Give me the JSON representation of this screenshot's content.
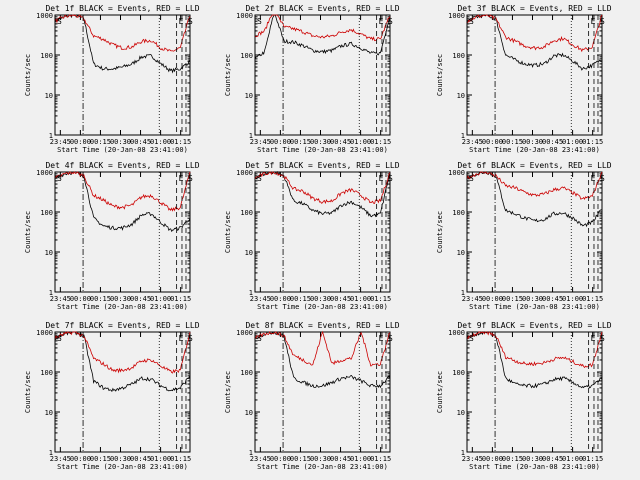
{
  "chart_data": {
    "type": "line",
    "yscale": "log",
    "ylim": [
      1,
      1000
    ],
    "ylabel": "Counts/sec",
    "xlabel": "Start Time (20-Jan-08 23:41:00)",
    "xlim_minutes": [
      "23:41",
      "01:22"
    ],
    "x_ticks": [
      "23:45",
      "00:00",
      "00:15",
      "00:30",
      "00:45",
      "01:00",
      "01:15"
    ],
    "y_ticks": [
      "1",
      "10",
      "100",
      "1000"
    ],
    "markers": [
      {
        "label": "S",
        "time": "23:41",
        "style": "solid"
      },
      {
        "label": "",
        "time": "00:02",
        "style": "dash-dot"
      },
      {
        "label": "",
        "time": "00:59",
        "style": "dotted"
      },
      {
        "label": "E",
        "time": "01:12",
        "style": "dashed"
      },
      {
        "label": "",
        "time": "01:16",
        "style": "dashed"
      },
      {
        "label": "S",
        "time": "01:19",
        "style": "dashed"
      }
    ],
    "panels": [
      {
        "title": "Det 1f BLACK = Events, RED = LLD",
        "series": [
          {
            "color": "#000000",
            "values": [
              700,
              900,
              1000,
              800,
              60,
              45,
              45,
              50,
              60,
              90,
              95,
              60,
              40,
              45,
              70
            ]
          },
          {
            "color": "#cc0000",
            "values": [
              700,
              900,
              1000,
              800,
              300,
              250,
              180,
              150,
              160,
              220,
              230,
              150,
              120,
              150,
              1000
            ]
          }
        ]
      },
      {
        "title": "Det 2f BLACK = Events, RED = LLD",
        "series": [
          {
            "color": "#000000",
            "values": [
              80,
              120,
              1200,
              220,
              210,
              170,
              130,
              120,
              130,
              170,
              190,
              150,
              110,
              110,
              1000
            ]
          },
          {
            "color": "#cc0000",
            "values": [
              300,
              400,
              1500,
              500,
              450,
              380,
              300,
              280,
              300,
              380,
              430,
              330,
              250,
              250,
              1000
            ]
          }
        ]
      },
      {
        "title": "Det 3f BLACK = Events, RED = LLD",
        "series": [
          {
            "color": "#000000",
            "values": [
              700,
              900,
              1000,
              800,
              100,
              75,
              60,
              55,
              60,
              95,
              100,
              70,
              45,
              55,
              80
            ]
          },
          {
            "color": "#cc0000",
            "values": [
              700,
              900,
              1000,
              800,
              280,
              220,
              170,
              150,
              160,
              230,
              260,
              180,
              130,
              160,
              1000
            ]
          }
        ]
      },
      {
        "title": "Det 4f BLACK = Events, RED = LLD",
        "series": [
          {
            "color": "#000000",
            "values": [
              700,
              900,
              1000,
              800,
              70,
              45,
              40,
              40,
              50,
              85,
              90,
              55,
              35,
              40,
              70
            ]
          },
          {
            "color": "#cc0000",
            "values": [
              700,
              900,
              1000,
              800,
              260,
              200,
              140,
              130,
              150,
              240,
              260,
              170,
              110,
              130,
              1000
            ]
          }
        ]
      },
      {
        "title": "Det 5f BLACK = Events, RED = LLD",
        "series": [
          {
            "color": "#000000",
            "values": [
              700,
              900,
              1000,
              800,
              190,
              160,
              110,
              90,
              95,
              150,
              180,
              130,
              80,
              90,
              1000
            ]
          },
          {
            "color": "#cc0000",
            "values": [
              700,
              900,
              1000,
              800,
              380,
              330,
              220,
              180,
              190,
              300,
              360,
              260,
              170,
              190,
              1000
            ]
          }
        ]
      },
      {
        "title": "Det 6f BLACK = Events, RED = LLD",
        "series": [
          {
            "color": "#000000",
            "values": [
              700,
              900,
              1000,
              800,
              110,
              90,
              70,
              60,
              65,
              90,
              95,
              70,
              45,
              55,
              120
            ]
          },
          {
            "color": "#cc0000",
            "values": [
              700,
              900,
              1000,
              800,
              450,
              400,
              310,
              260,
              280,
              360,
              400,
              300,
              210,
              250,
              1000
            ]
          }
        ]
      },
      {
        "title": "Det 7f BLACK = Events, RED = LLD",
        "series": [
          {
            "color": "#000000",
            "values": [
              700,
              900,
              1000,
              800,
              60,
              40,
              35,
              40,
              50,
              70,
              65,
              45,
              35,
              40,
              80
            ]
          },
          {
            "color": "#cc0000",
            "values": [
              700,
              900,
              1000,
              800,
              220,
              160,
              110,
              110,
              130,
              190,
              200,
              140,
              100,
              110,
              1000
            ]
          }
        ]
      },
      {
        "title": "Det 8f BLACK = Events, RED = LLD",
        "series": [
          {
            "color": "#000000",
            "values": [
              700,
              900,
              1000,
              800,
              70,
              55,
              45,
              45,
              55,
              70,
              75,
              60,
              45,
              45,
              80
            ]
          },
          {
            "color": "#cc0000",
            "values": [
              700,
              900,
              1000,
              800,
              260,
              200,
              150,
              1000,
              160,
              200,
              220,
              1000,
              150,
              160,
              1000
            ]
          }
        ]
      },
      {
        "title": "Det 9f BLACK = Events, RED = LLD",
        "series": [
          {
            "color": "#000000",
            "values": [
              700,
              900,
              1000,
              800,
              70,
              50,
              45,
              45,
              50,
              65,
              70,
              55,
              40,
              45,
              70
            ]
          },
          {
            "color": "#cc0000",
            "values": [
              700,
              900,
              1000,
              800,
              240,
              190,
              160,
              160,
              170,
              210,
              230,
              180,
              140,
              150,
              1000
            ]
          }
        ]
      }
    ]
  }
}
